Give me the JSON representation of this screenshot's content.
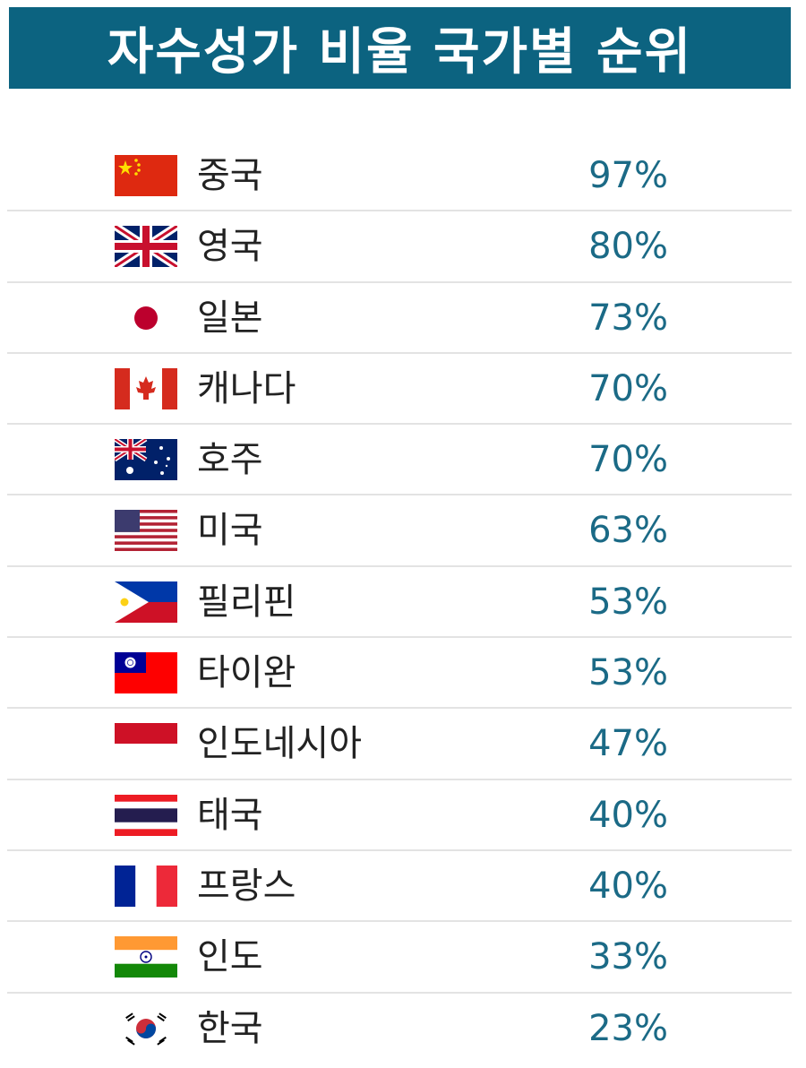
{
  "title": "자수성가 비율 국가별 순위",
  "rows": [
    {
      "country": "중국",
      "percent": "97%",
      "flag": "china-flag-icon"
    },
    {
      "country": "영국",
      "percent": "80%",
      "flag": "uk-flag-icon"
    },
    {
      "country": "일본",
      "percent": "73%",
      "flag": "japan-flag-icon"
    },
    {
      "country": "캐나다",
      "percent": "70%",
      "flag": "canada-flag-icon"
    },
    {
      "country": "호주",
      "percent": "70%",
      "flag": "australia-flag-icon"
    },
    {
      "country": "미국",
      "percent": "63%",
      "flag": "usa-flag-icon"
    },
    {
      "country": "필리핀",
      "percent": "53%",
      "flag": "philippines-flag-icon"
    },
    {
      "country": "타이완",
      "percent": "53%",
      "flag": "taiwan-flag-icon"
    },
    {
      "country": "인도네시아",
      "percent": "47%",
      "flag": "indonesia-flag-icon"
    },
    {
      "country": "태국",
      "percent": "40%",
      "flag": "thailand-flag-icon"
    },
    {
      "country": "프랑스",
      "percent": "40%",
      "flag": "france-flag-icon"
    },
    {
      "country": "인도",
      "percent": "33%",
      "flag": "india-flag-icon"
    },
    {
      "country": "한국",
      "percent": "23%",
      "flag": "korea-flag-icon"
    }
  ],
  "colors": {
    "header": "#0c6380",
    "percent_text": "#1b6a86"
  }
}
